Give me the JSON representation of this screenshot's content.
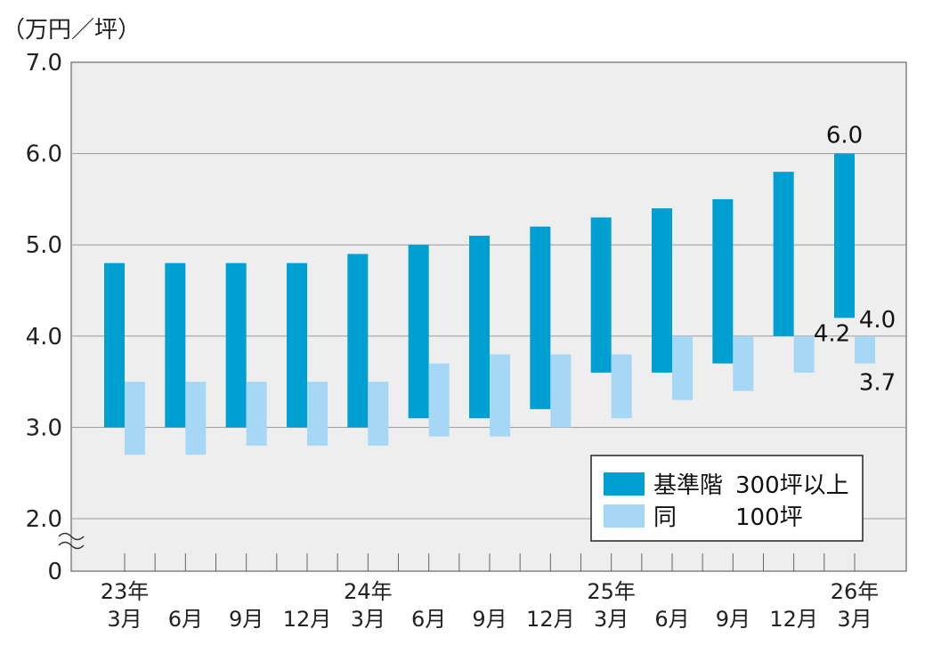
{
  "chart_data": {
    "type": "bar",
    "subtype": "floating-range",
    "title": "",
    "ylabel": "（万円／坪）",
    "y_ticks": [
      "7.0",
      "6.0",
      "5.0",
      "4.0",
      "3.0",
      "2.0",
      "0"
    ],
    "ylim": [
      2.0,
      7.0
    ],
    "axis_break": true,
    "grid": true,
    "x_month_labels": [
      "3月",
      "6月",
      "9月",
      "12月",
      "3月",
      "6月",
      "9月",
      "12月",
      "3月",
      "6月",
      "9月",
      "12月",
      "3月"
    ],
    "x_year_labels": [
      {
        "index": 0,
        "label": "23年"
      },
      {
        "index": 4,
        "label": "24年"
      },
      {
        "index": 8,
        "label": "25年"
      },
      {
        "index": 12,
        "label": "26年"
      }
    ],
    "series": [
      {
        "name": "基準階 300坪以上",
        "color": "#009fd2",
        "low": [
          3.0,
          3.0,
          3.0,
          3.0,
          3.0,
          3.1,
          3.1,
          3.2,
          3.6,
          3.6,
          3.7,
          4.0,
          4.2
        ],
        "high": [
          4.8,
          4.8,
          4.8,
          4.8,
          4.9,
          5.0,
          5.1,
          5.2,
          5.3,
          5.4,
          5.5,
          5.8,
          6.0
        ]
      },
      {
        "name": "同 100坪",
        "color": "#a6d8f5",
        "low": [
          2.7,
          2.7,
          2.8,
          2.8,
          2.8,
          2.9,
          2.9,
          3.0,
          3.1,
          3.3,
          3.4,
          3.6,
          3.7
        ],
        "high": [
          3.5,
          3.5,
          3.5,
          3.5,
          3.5,
          3.7,
          3.8,
          3.8,
          3.8,
          4.0,
          4.0,
          4.0,
          4.0
        ]
      }
    ],
    "data_labels": [
      {
        "series": 0,
        "index": 12,
        "end": "high",
        "text": "6.0"
      },
      {
        "series": 0,
        "index": 12,
        "end": "low",
        "text": "4.2"
      },
      {
        "series": 1,
        "index": 12,
        "end": "high",
        "text": "4.0"
      },
      {
        "series": 1,
        "index": 12,
        "end": "low",
        "text": "3.7"
      }
    ],
    "legend": {
      "placement": "bottom-right",
      "items": [
        {
          "series": 0,
          "label": "基準階",
          "value": "300坪以上"
        },
        {
          "series": 1,
          "label": "同",
          "value": "100坪"
        }
      ]
    }
  }
}
